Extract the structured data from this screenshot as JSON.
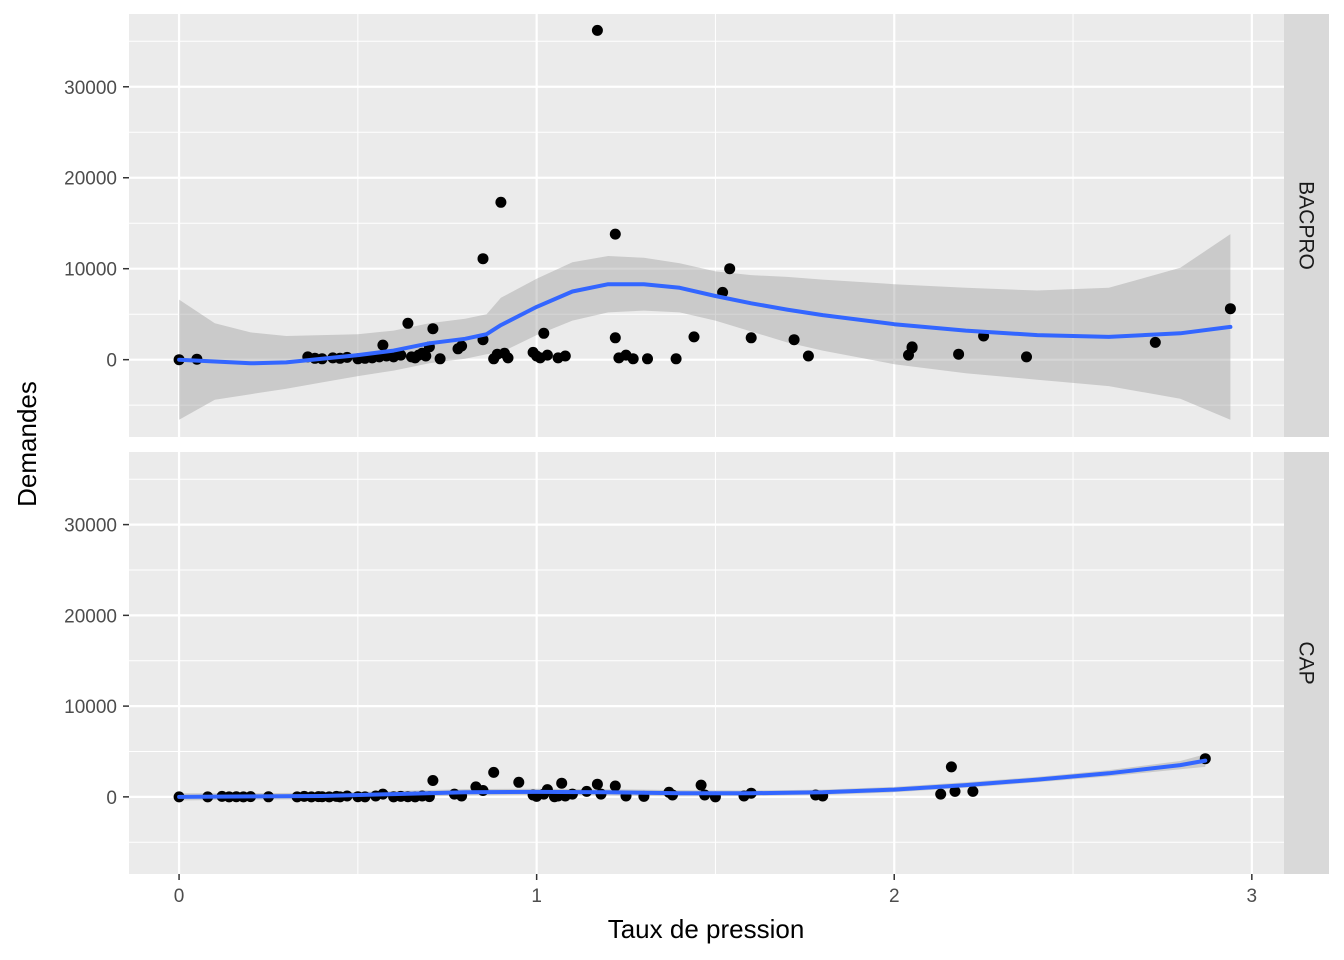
{
  "chart_data": {
    "type": "scatter",
    "xlabel": "Taux de pression",
    "ylabel": "Demandes",
    "xlim": [
      -0.14,
      3.09
    ],
    "ylim": [
      -8500,
      38000
    ],
    "x_ticks": [
      0,
      1,
      2,
      3
    ],
    "x_tick_labels": [
      "0",
      "1",
      "2",
      "3"
    ],
    "y_ticks": [
      0,
      10000,
      20000,
      30000
    ],
    "y_tick_labels": [
      "0",
      "10000",
      "20000",
      "30000"
    ],
    "grid": true,
    "legend": "none",
    "colors": {
      "points": "#000000",
      "smooth": "#3366ff",
      "band": "#999999",
      "panel": "#ebebeb",
      "strip": "#d9d9d9",
      "grid": "#ffffff"
    },
    "panels": [
      {
        "label": "BACPRO",
        "points": [
          [
            0,
            0
          ],
          [
            0.05,
            50
          ],
          [
            0.36,
            300
          ],
          [
            0.38,
            150
          ],
          [
            0.4,
            100
          ],
          [
            0.43,
            200
          ],
          [
            0.45,
            150
          ],
          [
            0.47,
            250
          ],
          [
            0.5,
            100
          ],
          [
            0.52,
            150
          ],
          [
            0.54,
            200
          ],
          [
            0.56,
            300
          ],
          [
            0.57,
            1600
          ],
          [
            0.58,
            400
          ],
          [
            0.6,
            300
          ],
          [
            0.62,
            500
          ],
          [
            0.64,
            4000
          ],
          [
            0.65,
            300
          ],
          [
            0.66,
            200
          ],
          [
            0.67,
            500
          ],
          [
            0.68,
            700
          ],
          [
            0.69,
            400
          ],
          [
            0.7,
            1400
          ],
          [
            0.71,
            3400
          ],
          [
            0.73,
            100
          ],
          [
            0.78,
            1200
          ],
          [
            0.79,
            1500
          ],
          [
            0.85,
            11100
          ],
          [
            0.85,
            2200
          ],
          [
            0.88,
            100
          ],
          [
            0.89,
            600
          ],
          [
            0.9,
            17300
          ],
          [
            0.91,
            700
          ],
          [
            0.92,
            200
          ],
          [
            0.99,
            800
          ],
          [
            1.0,
            400
          ],
          [
            1.01,
            200
          ],
          [
            1.02,
            2900
          ],
          [
            1.03,
            500
          ],
          [
            1.06,
            200
          ],
          [
            1.08,
            400
          ],
          [
            1.17,
            36200
          ],
          [
            1.22,
            13800
          ],
          [
            1.22,
            2400
          ],
          [
            1.23,
            200
          ],
          [
            1.25,
            500
          ],
          [
            1.27,
            100
          ],
          [
            1.31,
            100
          ],
          [
            1.39,
            100
          ],
          [
            1.44,
            2500
          ],
          [
            1.52,
            7400
          ],
          [
            1.54,
            10000
          ],
          [
            1.6,
            2400
          ],
          [
            1.72,
            2200
          ],
          [
            1.76,
            400
          ],
          [
            2.04,
            500
          ],
          [
            2.05,
            1300
          ],
          [
            2.05,
            1400
          ],
          [
            2.18,
            600
          ],
          [
            2.25,
            2600
          ],
          [
            2.37,
            300
          ],
          [
            2.73,
            1900
          ],
          [
            2.94,
            5600
          ]
        ],
        "smooth": [
          [
            0,
            0
          ],
          [
            0.1,
            -200
          ],
          [
            0.2,
            -400
          ],
          [
            0.3,
            -300
          ],
          [
            0.4,
            100
          ],
          [
            0.5,
            500
          ],
          [
            0.6,
            1000
          ],
          [
            0.7,
            1800
          ],
          [
            0.8,
            2300
          ],
          [
            0.86,
            2800
          ],
          [
            0.9,
            3800
          ],
          [
            1.0,
            5800
          ],
          [
            1.1,
            7500
          ],
          [
            1.2,
            8300
          ],
          [
            1.3,
            8300
          ],
          [
            1.4,
            7900
          ],
          [
            1.5,
            7000
          ],
          [
            1.6,
            6200
          ],
          [
            1.7,
            5500
          ],
          [
            1.8,
            4900
          ],
          [
            2.0,
            3900
          ],
          [
            2.2,
            3200
          ],
          [
            2.4,
            2700
          ],
          [
            2.6,
            2500
          ],
          [
            2.8,
            2900
          ],
          [
            2.94,
            3600
          ]
        ],
        "band_upper": [
          [
            0,
            6600
          ],
          [
            0.1,
            4000
          ],
          [
            0.2,
            3000
          ],
          [
            0.3,
            2600
          ],
          [
            0.4,
            2700
          ],
          [
            0.5,
            2800
          ],
          [
            0.6,
            3200
          ],
          [
            0.7,
            4000
          ],
          [
            0.8,
            4500
          ],
          [
            0.86,
            5000
          ],
          [
            0.9,
            6800
          ],
          [
            1.0,
            8900
          ],
          [
            1.1,
            10700
          ],
          [
            1.2,
            11400
          ],
          [
            1.3,
            11200
          ],
          [
            1.4,
            10600
          ],
          [
            1.5,
            9700
          ],
          [
            1.6,
            9300
          ],
          [
            1.7,
            9100
          ],
          [
            1.8,
            8800
          ],
          [
            2.0,
            8300
          ],
          [
            2.2,
            7900
          ],
          [
            2.4,
            7600
          ],
          [
            2.6,
            7900
          ],
          [
            2.8,
            10100
          ],
          [
            2.94,
            13800
          ]
        ],
        "band_lower": [
          [
            0,
            -6600
          ],
          [
            0.1,
            -4400
          ],
          [
            0.2,
            -3800
          ],
          [
            0.3,
            -3200
          ],
          [
            0.4,
            -2500
          ],
          [
            0.5,
            -1800
          ],
          [
            0.6,
            -1200
          ],
          [
            0.7,
            -400
          ],
          [
            0.8,
            100
          ],
          [
            0.86,
            600
          ],
          [
            0.9,
            800
          ],
          [
            1.0,
            2700
          ],
          [
            1.1,
            4300
          ],
          [
            1.2,
            5200
          ],
          [
            1.3,
            5400
          ],
          [
            1.4,
            5200
          ],
          [
            1.5,
            4300
          ],
          [
            1.6,
            3100
          ],
          [
            1.7,
            1900
          ],
          [
            1.8,
            1000
          ],
          [
            2.0,
            -500
          ],
          [
            2.2,
            -1500
          ],
          [
            2.4,
            -2200
          ],
          [
            2.6,
            -2900
          ],
          [
            2.8,
            -4300
          ],
          [
            2.94,
            -6600
          ]
        ]
      },
      {
        "label": "CAP",
        "points": [
          [
            0,
            0
          ],
          [
            0.08,
            0
          ],
          [
            0.12,
            50
          ],
          [
            0.14,
            0
          ],
          [
            0.16,
            20
          ],
          [
            0.18,
            0
          ],
          [
            0.2,
            30
          ],
          [
            0.25,
            10
          ],
          [
            0.33,
            0
          ],
          [
            0.35,
            50
          ],
          [
            0.37,
            0
          ],
          [
            0.39,
            30
          ],
          [
            0.4,
            20
          ],
          [
            0.42,
            0
          ],
          [
            0.44,
            50
          ],
          [
            0.45,
            0
          ],
          [
            0.47,
            100
          ],
          [
            0.5,
            20
          ],
          [
            0.52,
            0
          ],
          [
            0.55,
            100
          ],
          [
            0.57,
            300
          ],
          [
            0.6,
            0
          ],
          [
            0.62,
            50
          ],
          [
            0.64,
            20
          ],
          [
            0.66,
            0
          ],
          [
            0.68,
            100
          ],
          [
            0.7,
            30
          ],
          [
            0.71,
            1800
          ],
          [
            0.77,
            300
          ],
          [
            0.79,
            100
          ],
          [
            0.83,
            1100
          ],
          [
            0.85,
            700
          ],
          [
            0.88,
            2700
          ],
          [
            0.95,
            1600
          ],
          [
            0.99,
            200
          ],
          [
            1.0,
            50
          ],
          [
            1.02,
            300
          ],
          [
            1.03,
            800
          ],
          [
            1.05,
            20
          ],
          [
            1.06,
            100
          ],
          [
            1.07,
            1500
          ],
          [
            1.08,
            100
          ],
          [
            1.1,
            300
          ],
          [
            1.14,
            600
          ],
          [
            1.17,
            1400
          ],
          [
            1.18,
            300
          ],
          [
            1.22,
            1200
          ],
          [
            1.25,
            100
          ],
          [
            1.3,
            50
          ],
          [
            1.37,
            500
          ],
          [
            1.38,
            200
          ],
          [
            1.46,
            1300
          ],
          [
            1.47,
            200
          ],
          [
            1.5,
            0
          ],
          [
            1.58,
            100
          ],
          [
            1.6,
            400
          ],
          [
            1.78,
            200
          ],
          [
            1.8,
            100
          ],
          [
            2.13,
            300
          ],
          [
            2.16,
            3300
          ],
          [
            2.17,
            600
          ],
          [
            2.22,
            600
          ],
          [
            2.87,
            4200
          ]
        ],
        "smooth": [
          [
            0,
            0
          ],
          [
            0.2,
            50
          ],
          [
            0.4,
            100
          ],
          [
            0.6,
            300
          ],
          [
            0.8,
            500
          ],
          [
            1.0,
            550
          ],
          [
            1.2,
            500
          ],
          [
            1.4,
            400
          ],
          [
            1.6,
            400
          ],
          [
            1.8,
            500
          ],
          [
            2.0,
            800
          ],
          [
            2.2,
            1300
          ],
          [
            2.4,
            1900
          ],
          [
            2.6,
            2600
          ],
          [
            2.8,
            3500
          ],
          [
            2.87,
            4000
          ]
        ],
        "band_upper": [
          [
            0,
            400
          ],
          [
            0.2,
            400
          ],
          [
            0.4,
            450
          ],
          [
            0.6,
            650
          ],
          [
            0.8,
            850
          ],
          [
            1.0,
            900
          ],
          [
            1.2,
            850
          ],
          [
            1.4,
            750
          ],
          [
            1.6,
            700
          ],
          [
            1.8,
            800
          ],
          [
            2.0,
            1100
          ],
          [
            2.2,
            1600
          ],
          [
            2.4,
            2200
          ],
          [
            2.6,
            2950
          ],
          [
            2.8,
            3950
          ],
          [
            2.87,
            4700
          ]
        ],
        "band_lower": [
          [
            0,
            -400
          ],
          [
            0.2,
            -300
          ],
          [
            0.4,
            -250
          ],
          [
            0.6,
            -50
          ],
          [
            0.8,
            150
          ],
          [
            1.0,
            200
          ],
          [
            1.2,
            150
          ],
          [
            1.4,
            50
          ],
          [
            1.6,
            100
          ],
          [
            1.8,
            200
          ],
          [
            2.0,
            500
          ],
          [
            2.2,
            1000
          ],
          [
            2.4,
            1600
          ],
          [
            2.6,
            2250
          ],
          [
            2.8,
            3050
          ],
          [
            2.87,
            3300
          ]
        ]
      }
    ]
  }
}
